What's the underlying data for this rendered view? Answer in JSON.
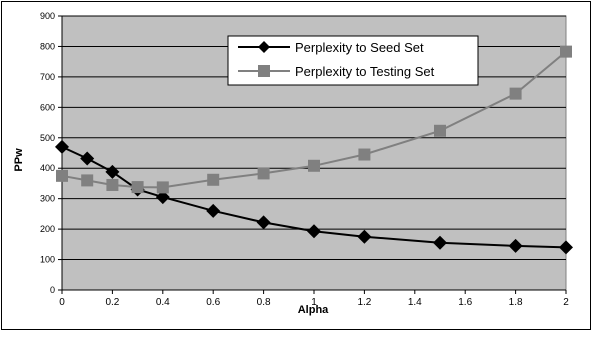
{
  "chart_data": {
    "type": "line",
    "title": "",
    "xlabel": "Alpha",
    "ylabel": "PPw",
    "xlim": [
      0,
      2
    ],
    "ylim": [
      0,
      900
    ],
    "x_ticks": [
      "0",
      "0.2",
      "0.4",
      "0.6",
      "0.8",
      "1",
      "1.2",
      "1.4",
      "1.6",
      "1.8",
      "2"
    ],
    "y_ticks": [
      "0",
      "100",
      "200",
      "300",
      "400",
      "500",
      "600",
      "700",
      "800",
      "900"
    ],
    "grid": "horizontal",
    "legend_position": "top-center",
    "plot_background": "#c0c0c0",
    "series": [
      {
        "name": "Perplexity to Seed Set",
        "color": "#000000",
        "marker": "diamond",
        "x": [
          0,
          0.1,
          0.2,
          0.3,
          0.4,
          0.6,
          0.8,
          1.0,
          1.2,
          1.5,
          1.8,
          2.0
        ],
        "y": [
          470,
          432,
          388,
          330,
          305,
          260,
          222,
          193,
          175,
          155,
          145,
          140
        ]
      },
      {
        "name": "Perplexity to Testing Set",
        "color": "#808080",
        "marker": "square",
        "x": [
          0,
          0.1,
          0.2,
          0.3,
          0.4,
          0.6,
          0.8,
          1.0,
          1.2,
          1.5,
          1.8,
          2.0
        ],
        "y": [
          375,
          360,
          345,
          338,
          337,
          362,
          383,
          408,
          445,
          523,
          645,
          783
        ]
      }
    ]
  }
}
